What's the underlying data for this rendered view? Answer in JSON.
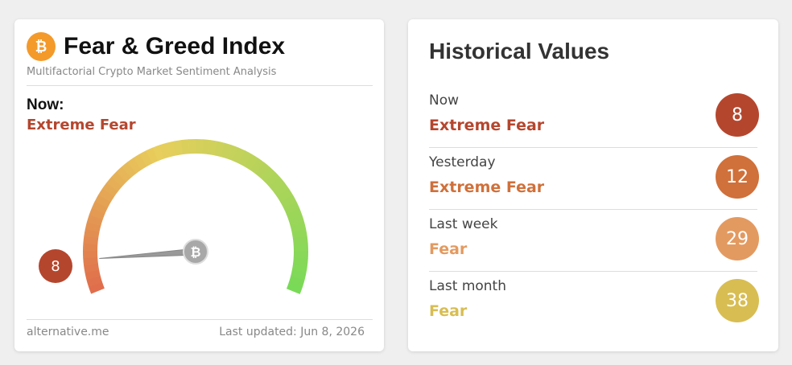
{
  "widget": {
    "title": "Fear & Greed Index",
    "subtitle": "Multifactorial Crypto Market Sentiment Analysis",
    "now_label": "Now:",
    "classification": "Extreme Fear",
    "value": 8,
    "color": "#b5462e",
    "scale": [
      0,
      100
    ],
    "source": "alternative.me",
    "last_updated": "Last updated: Jun 8, 2026"
  },
  "history": {
    "title": "Historical Values",
    "rows": [
      {
        "label": "Now",
        "classification": "Extreme Fear",
        "value": 8,
        "color": "#b5462e"
      },
      {
        "label": "Yesterday",
        "classification": "Extreme Fear",
        "value": 12,
        "color": "#d0703a"
      },
      {
        "label": "Last week",
        "classification": "Fear",
        "value": 29,
        "color": "#e39a60"
      },
      {
        "label": "Last month",
        "classification": "Fear",
        "value": 38,
        "color": "#d8bd52"
      }
    ]
  }
}
